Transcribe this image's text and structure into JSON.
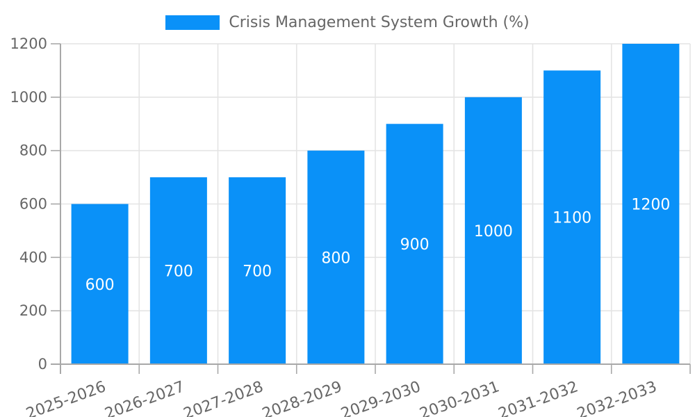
{
  "chart_data": {
    "type": "bar",
    "title": "Crisis Management System Growth (%)",
    "categories": [
      "2025-2026",
      "2026-2027",
      "2027-2028",
      "2028-2029",
      "2029-2030",
      "2030-2031",
      "2031-2032",
      "2032-2033"
    ],
    "values": [
      600,
      700,
      700,
      800,
      900,
      1000,
      1100,
      1200
    ],
    "bar_value_labels": [
      "600",
      "700",
      "700",
      "800",
      "900",
      "1000",
      "1100",
      "1200"
    ],
    "xlabel": "",
    "ylabel": "",
    "ylim": [
      0,
      1200
    ],
    "yticks": [
      0,
      200,
      400,
      600,
      800,
      1000,
      1200
    ],
    "grid": true,
    "legend_position": "top-center",
    "x_tick_rotation_deg": -20,
    "colors": {
      "bar": "#0a91f8",
      "bar_label": "#ffffff",
      "tick_label": "#666666",
      "axis": "#a8a8a8",
      "grid": "#e4e4e4",
      "background": "#ffffff"
    }
  }
}
